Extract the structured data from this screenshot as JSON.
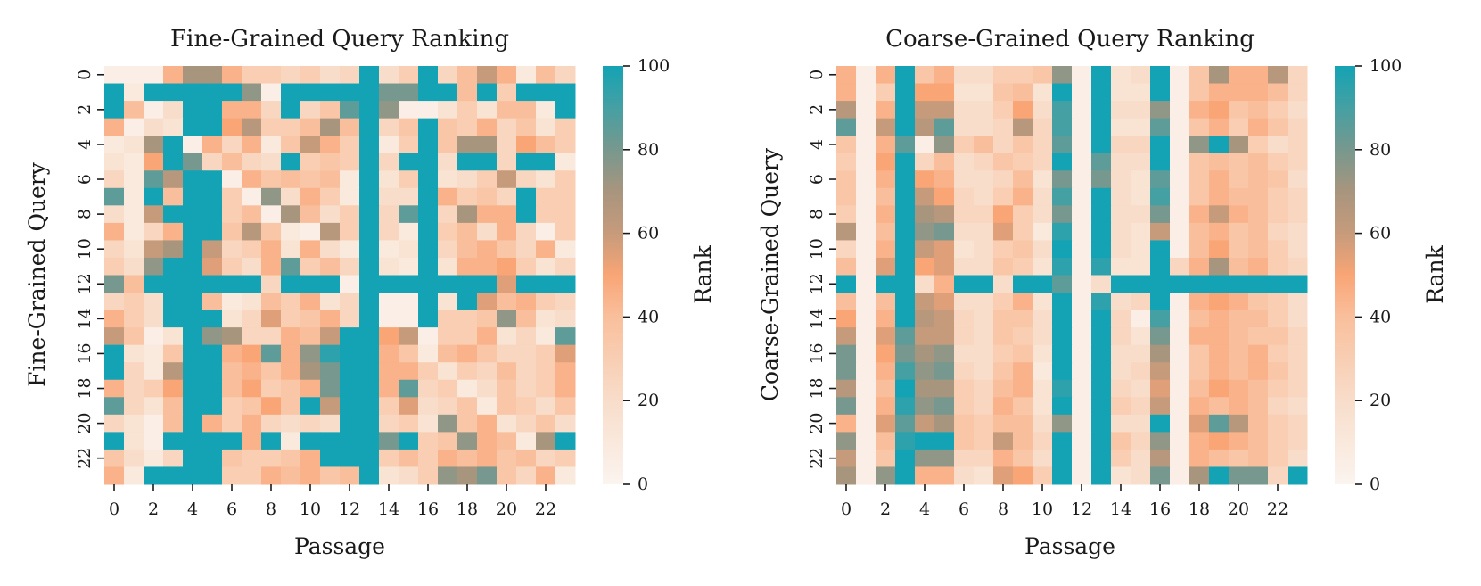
{
  "colors": {
    "low": "#fbf4ef",
    "mid": "#f9a576",
    "high_mid": "#a8957e",
    "high": "#14a3b4"
  },
  "chart_data": [
    {
      "type": "heatmap",
      "title": "Fine-Grained Query Ranking",
      "xlabel": "Passage",
      "ylabel": "Fine-Grained Query",
      "x_tick_labels": [
        "0",
        "2",
        "4",
        "6",
        "8",
        "10",
        "12",
        "14",
        "16",
        "18",
        "20",
        "22"
      ],
      "y_tick_labels": [
        "0",
        "2",
        "4",
        "6",
        "8",
        "10",
        "12",
        "14",
        "16",
        "18",
        "20",
        "22"
      ],
      "colorbar": {
        "label": "Rank",
        "range": [
          0,
          100
        ],
        "ticks": [
          "0",
          "20",
          "40",
          "60",
          "80",
          "100"
        ]
      },
      "values": [
        [
          5,
          5,
          5,
          45,
          70,
          70,
          45,
          30,
          30,
          25,
          30,
          20,
          25,
          100,
          20,
          30,
          100,
          25,
          40,
          60,
          45,
          10,
          40,
          25
        ],
        [
          100,
          10,
          100,
          100,
          100,
          100,
          100,
          75,
          5,
          100,
          100,
          100,
          100,
          100,
          80,
          80,
          100,
          100,
          40,
          100,
          30,
          100,
          100,
          100
        ],
        [
          100,
          40,
          5,
          20,
          100,
          100,
          45,
          45,
          25,
          100,
          25,
          35,
          85,
          100,
          75,
          5,
          5,
          15,
          30,
          15,
          40,
          40,
          10,
          100
        ],
        [
          45,
          5,
          20,
          15,
          100,
          100,
          50,
          65,
          30,
          30,
          40,
          70,
          40,
          100,
          25,
          35,
          100,
          35,
          30,
          45,
          25,
          35,
          15,
          30
        ],
        [
          10,
          15,
          70,
          100,
          5,
          45,
          25,
          45,
          10,
          35,
          60,
          45,
          30,
          100,
          10,
          30,
          100,
          35,
          70,
          70,
          25,
          50,
          40,
          30
        ],
        [
          15,
          10,
          50,
          100,
          80,
          25,
          40,
          25,
          20,
          100,
          30,
          35,
          30,
          100,
          25,
          100,
          100,
          20,
          100,
          100,
          25,
          100,
          100,
          10
        ],
        [
          25,
          10,
          85,
          65,
          100,
          100,
          5,
          45,
          35,
          40,
          35,
          40,
          10,
          100,
          15,
          30,
          100,
          15,
          20,
          30,
          60,
          25,
          15,
          30
        ],
        [
          85,
          10,
          100,
          40,
          100,
          100,
          30,
          5,
          75,
          20,
          45,
          30,
          10,
          100,
          20,
          20,
          100,
          45,
          30,
          35,
          25,
          100,
          30,
          30
        ],
        [
          20,
          10,
          60,
          100,
          100,
          100,
          30,
          40,
          5,
          70,
          40,
          20,
          30,
          100,
          25,
          85,
          100,
          25,
          70,
          45,
          45,
          100,
          30,
          30
        ],
        [
          45,
          10,
          25,
          45,
          100,
          100,
          35,
          65,
          35,
          10,
          5,
          65,
          30,
          100,
          25,
          10,
          100,
          30,
          40,
          20,
          45,
          25,
          5,
          30
        ],
        [
          25,
          15,
          60,
          70,
          100,
          60,
          25,
          30,
          45,
          15,
          45,
          20,
          10,
          100,
          10,
          15,
          100,
          25,
          40,
          45,
          35,
          25,
          45,
          10
        ],
        [
          30,
          20,
          75,
          100,
          100,
          55,
          30,
          20,
          45,
          85,
          30,
          40,
          25,
          100,
          15,
          10,
          100,
          15,
          45,
          45,
          50,
          30,
          15,
          25
        ],
        [
          80,
          40,
          100,
          100,
          100,
          100,
          100,
          100,
          25,
          100,
          100,
          100,
          5,
          100,
          100,
          100,
          100,
          100,
          100,
          100,
          55,
          100,
          100,
          100
        ],
        [
          25,
          30,
          20,
          100,
          100,
          40,
          10,
          15,
          40,
          30,
          45,
          15,
          25,
          100,
          5,
          5,
          100,
          15,
          100,
          55,
          40,
          45,
          30,
          25
        ],
        [
          45,
          30,
          20,
          100,
          100,
          100,
          15,
          25,
          55,
          30,
          35,
          45,
          25,
          100,
          5,
          5,
          100,
          30,
          30,
          35,
          75,
          40,
          15,
          20
        ],
        [
          60,
          35,
          5,
          15,
          100,
          75,
          70,
          25,
          25,
          45,
          40,
          60,
          100,
          100,
          50,
          60,
          5,
          30,
          30,
          45,
          15,
          25,
          10,
          85
        ],
        [
          100,
          15,
          10,
          35,
          100,
          100,
          45,
          50,
          85,
          45,
          75,
          95,
          100,
          100,
          45,
          35,
          10,
          40,
          45,
          35,
          25,
          25,
          30,
          55
        ],
        [
          100,
          25,
          10,
          65,
          100,
          100,
          40,
          45,
          35,
          45,
          70,
          80,
          100,
          100,
          45,
          45,
          30,
          15,
          30,
          25,
          40,
          25,
          30,
          45
        ],
        [
          45,
          25,
          30,
          50,
          100,
          100,
          40,
          50,
          30,
          35,
          45,
          80,
          100,
          100,
          45,
          85,
          25,
          30,
          10,
          20,
          35,
          25,
          30,
          45
        ],
        [
          85,
          25,
          15,
          40,
          100,
          100,
          30,
          35,
          50,
          35,
          100,
          60,
          100,
          100,
          30,
          55,
          20,
          25,
          35,
          10,
          35,
          30,
          20,
          35
        ],
        [
          25,
          15,
          5,
          40,
          100,
          45,
          30,
          45,
          25,
          20,
          25,
          20,
          100,
          100,
          25,
          30,
          15,
          75,
          35,
          45,
          15,
          25,
          35,
          20
        ],
        [
          100,
          15,
          5,
          100,
          100,
          100,
          100,
          45,
          100,
          10,
          100,
          100,
          100,
          100,
          80,
          100,
          30,
          35,
          75,
          45,
          40,
          10,
          70,
          100
        ],
        [
          35,
          20,
          10,
          25,
          100,
          100,
          35,
          30,
          30,
          35,
          45,
          100,
          100,
          100,
          30,
          40,
          30,
          45,
          40,
          45,
          35,
          40,
          25,
          30
        ],
        [
          45,
          10,
          100,
          100,
          100,
          100,
          30,
          30,
          45,
          40,
          45,
          35,
          40,
          100,
          15,
          20,
          30,
          75,
          70,
          80,
          35,
          25,
          45,
          10
        ]
      ]
    },
    {
      "type": "heatmap",
      "title": "Coarse-Grained Query Ranking",
      "xlabel": "Passage",
      "ylabel": "Coarse-Grained Query",
      "x_tick_labels": [
        "0",
        "2",
        "4",
        "6",
        "8",
        "10",
        "12",
        "14",
        "16",
        "18",
        "20",
        "22"
      ],
      "y_tick_labels": [
        "0",
        "2",
        "4",
        "6",
        "8",
        "10",
        "12",
        "14",
        "16",
        "18",
        "20",
        "22"
      ],
      "colorbar": {
        "label": "Rank",
        "range": [
          0,
          100
        ],
        "ticks": [
          "0",
          "20",
          "40",
          "60",
          "80",
          "100"
        ]
      },
      "values": [
        [
          45,
          5,
          45,
          100,
          35,
          45,
          20,
          20,
          30,
          30,
          35,
          75,
          5,
          100,
          15,
          20,
          100,
          5,
          35,
          70,
          45,
          45,
          65,
          25
        ],
        [
          45,
          5,
          30,
          100,
          50,
          50,
          15,
          15,
          35,
          40,
          15,
          100,
          5,
          100,
          15,
          15,
          100,
          5,
          35,
          45,
          45,
          45,
          40,
          25
        ],
        [
          65,
          5,
          45,
          100,
          60,
          60,
          20,
          20,
          30,
          50,
          20,
          90,
          5,
          100,
          20,
          20,
          75,
          5,
          45,
          50,
          35,
          40,
          30,
          20
        ],
        [
          85,
          5,
          60,
          100,
          65,
          85,
          20,
          20,
          25,
          65,
          25,
          90,
          5,
          100,
          15,
          15,
          85,
          5,
          35,
          45,
          30,
          45,
          35,
          25
        ],
        [
          35,
          5,
          45,
          85,
          5,
          75,
          30,
          40,
          25,
          35,
          25,
          85,
          5,
          100,
          25,
          25,
          100,
          5,
          75,
          100,
          70,
          30,
          20,
          25
        ],
        [
          30,
          5,
          50,
          100,
          25,
          40,
          20,
          25,
          35,
          30,
          25,
          100,
          5,
          85,
          20,
          20,
          100,
          5,
          35,
          40,
          35,
          40,
          30,
          25
        ],
        [
          35,
          5,
          45,
          100,
          50,
          45,
          20,
          20,
          25,
          40,
          15,
          80,
          5,
          80,
          20,
          15,
          85,
          5,
          35,
          45,
          35,
          40,
          35,
          20
        ],
        [
          35,
          5,
          40,
          100,
          60,
          50,
          25,
          20,
          30,
          45,
          20,
          90,
          5,
          100,
          20,
          15,
          90,
          5,
          35,
          45,
          40,
          40,
          30,
          25
        ],
        [
          30,
          5,
          45,
          100,
          70,
          65,
          25,
          25,
          50,
          30,
          20,
          80,
          5,
          100,
          20,
          20,
          80,
          5,
          45,
          60,
          45,
          40,
          30,
          25
        ],
        [
          65,
          5,
          40,
          100,
          75,
          80,
          20,
          20,
          55,
          30,
          10,
          95,
          5,
          100,
          20,
          15,
          60,
          5,
          40,
          45,
          35,
          40,
          25,
          20
        ],
        [
          25,
          5,
          45,
          100,
          60,
          55,
          15,
          20,
          30,
          35,
          20,
          100,
          5,
          100,
          20,
          15,
          100,
          5,
          40,
          50,
          35,
          40,
          30,
          20
        ],
        [
          40,
          5,
          55,
          100,
          50,
          55,
          20,
          20,
          35,
          30,
          15,
          95,
          5,
          95,
          15,
          15,
          100,
          25,
          45,
          70,
          40,
          45,
          30,
          25
        ],
        [
          100,
          5,
          100,
          100,
          20,
          45,
          100,
          100,
          20,
          100,
          100,
          85,
          5,
          20,
          100,
          100,
          100,
          100,
          100,
          100,
          100,
          100,
          100,
          100
        ],
        [
          40,
          5,
          40,
          100,
          60,
          55,
          20,
          20,
          30,
          45,
          15,
          100,
          5,
          95,
          20,
          25,
          100,
          5,
          45,
          50,
          45,
          35,
          30,
          20
        ],
        [
          50,
          5,
          45,
          100,
          65,
          60,
          25,
          20,
          35,
          35,
          20,
          100,
          5,
          100,
          25,
          5,
          90,
          5,
          40,
          45,
          40,
          40,
          30,
          20
        ],
        [
          60,
          5,
          55,
          85,
          60,
          60,
          25,
          20,
          35,
          30,
          20,
          100,
          5,
          100,
          25,
          15,
          80,
          5,
          45,
          45,
          40,
          35,
          35,
          25
        ],
        [
          80,
          5,
          50,
          80,
          70,
          75,
          20,
          20,
          30,
          35,
          15,
          100,
          5,
          100,
          20,
          20,
          70,
          5,
          35,
          45,
          40,
          45,
          30,
          25
        ],
        [
          80,
          5,
          45,
          90,
          75,
          80,
          25,
          20,
          35,
          45,
          10,
          100,
          5,
          100,
          20,
          25,
          60,
          5,
          35,
          45,
          40,
          45,
          35,
          25
        ],
        [
          65,
          5,
          40,
          100,
          70,
          70,
          30,
          25,
          40,
          45,
          15,
          95,
          5,
          100,
          25,
          20,
          55,
          5,
          40,
          50,
          45,
          40,
          30,
          25
        ],
        [
          80,
          5,
          45,
          95,
          75,
          80,
          30,
          25,
          45,
          35,
          15,
          100,
          5,
          100,
          30,
          25,
          60,
          5,
          45,
          40,
          45,
          40,
          25,
          20
        ],
        [
          45,
          5,
          55,
          85,
          60,
          70,
          35,
          30,
          40,
          40,
          20,
          75,
          5,
          100,
          20,
          20,
          100,
          5,
          55,
          85,
          65,
          40,
          30,
          25
        ],
        [
          75,
          5,
          40,
          95,
          100,
          100,
          35,
          30,
          60,
          40,
          25,
          100,
          5,
          100,
          35,
          25,
          75,
          5,
          45,
          50,
          45,
          40,
          30,
          25
        ],
        [
          60,
          5,
          35,
          100,
          75,
          75,
          25,
          25,
          45,
          35,
          20,
          100,
          5,
          100,
          30,
          20,
          65,
          5,
          45,
          40,
          35,
          40,
          30,
          20
        ],
        [
          70,
          5,
          75,
          100,
          45,
          45,
          20,
          15,
          55,
          50,
          30,
          100,
          5,
          100,
          15,
          20,
          80,
          5,
          70,
          100,
          80,
          80,
          25,
          100
        ]
      ]
    }
  ]
}
